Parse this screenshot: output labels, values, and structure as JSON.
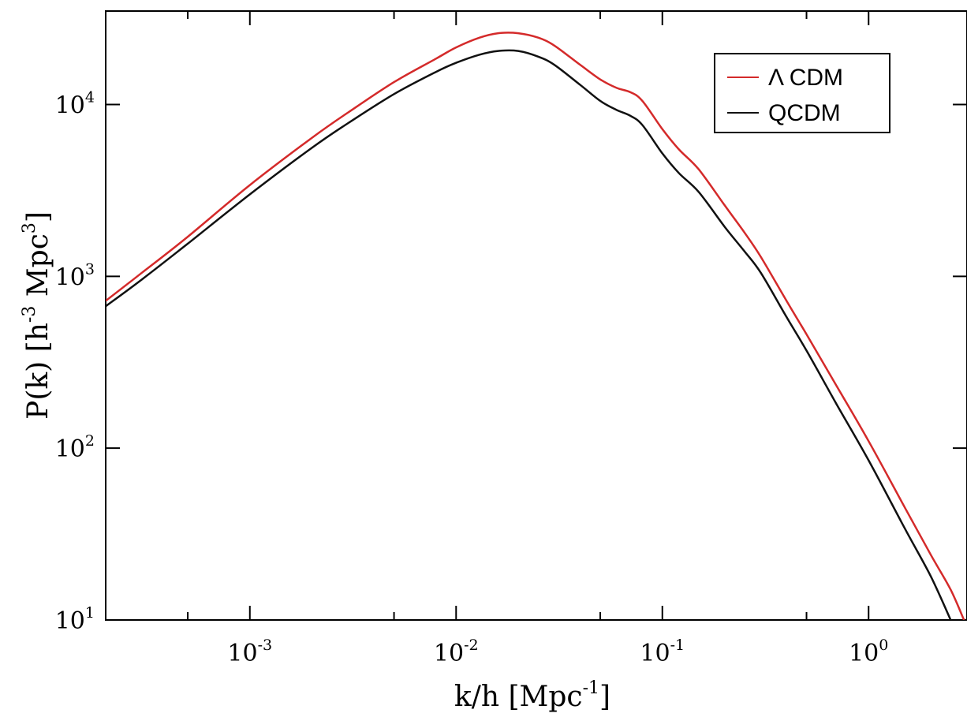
{
  "chart_data": {
    "type": "line",
    "x_scale": "log",
    "y_scale": "log",
    "xlim": [
      0.0002,
      3.0
    ],
    "ylim": [
      10,
      35000
    ],
    "grid": false,
    "legend_position": "top-right",
    "x_ticks": [
      {
        "base": "10",
        "exp": "-3",
        "value": 0.001
      },
      {
        "base": "10",
        "exp": "-2",
        "value": 0.01
      },
      {
        "base": "10",
        "exp": "-1",
        "value": 0.1
      },
      {
        "base": "10",
        "exp": "0",
        "value": 1
      }
    ],
    "x_minor_ticks": [
      0.0005,
      0.005,
      0.05,
      0.5
    ],
    "y_ticks": [
      {
        "base": "10",
        "exp": "1",
        "value": 10
      },
      {
        "base": "10",
        "exp": "2",
        "value": 100
      },
      {
        "base": "10",
        "exp": "3",
        "value": 1000
      },
      {
        "base": "10",
        "exp": "4",
        "value": 10000
      }
    ],
    "xlabel": {
      "main": "k/h [Mpc",
      "sup": "-1",
      "tail": "]"
    },
    "ylabel": {
      "p1": "P(k) [h",
      "sup1": "-3",
      "p2": " Mpc",
      "sup2": "3",
      "p3": "]"
    },
    "series": [
      {
        "name": "Λ CDM",
        "color": "#d42a2a",
        "x": [
          0.0002,
          0.0003,
          0.0005,
          0.001,
          0.002,
          0.003,
          0.005,
          0.008,
          0.01,
          0.013,
          0.016,
          0.02,
          0.025,
          0.03,
          0.04,
          0.05,
          0.06,
          0.07,
          0.08,
          0.1,
          0.12,
          0.15,
          0.2,
          0.25,
          0.3,
          0.4,
          0.5,
          0.7,
          1.0,
          1.5,
          2.0,
          2.5,
          2.9
        ],
        "y": [
          720,
          1050,
          1700,
          3400,
          6400,
          9000,
          13500,
          18500,
          21500,
          24500,
          26000,
          26000,
          24500,
          22000,
          17000,
          14000,
          12500,
          11800,
          10500,
          7200,
          5500,
          4200,
          2600,
          1800,
          1300,
          720,
          460,
          230,
          110,
          45,
          24,
          15,
          10
        ]
      },
      {
        "name": "QCDM",
        "color": "#111111",
        "x": [
          0.0002,
          0.0003,
          0.0005,
          0.001,
          0.002,
          0.003,
          0.005,
          0.008,
          0.01,
          0.013,
          0.016,
          0.02,
          0.025,
          0.03,
          0.04,
          0.05,
          0.06,
          0.07,
          0.08,
          0.1,
          0.12,
          0.15,
          0.2,
          0.25,
          0.3,
          0.4,
          0.5,
          0.7,
          1.0,
          1.5,
          2.0,
          2.5
        ],
        "y": [
          670,
          960,
          1550,
          3000,
          5600,
          7800,
          11500,
          15500,
          17500,
          19500,
          20500,
          20500,
          19000,
          17000,
          13000,
          10500,
          9300,
          8600,
          7600,
          5200,
          4000,
          3100,
          1950,
          1400,
          1050,
          580,
          370,
          180,
          85,
          34,
          18,
          10
        ]
      }
    ]
  }
}
